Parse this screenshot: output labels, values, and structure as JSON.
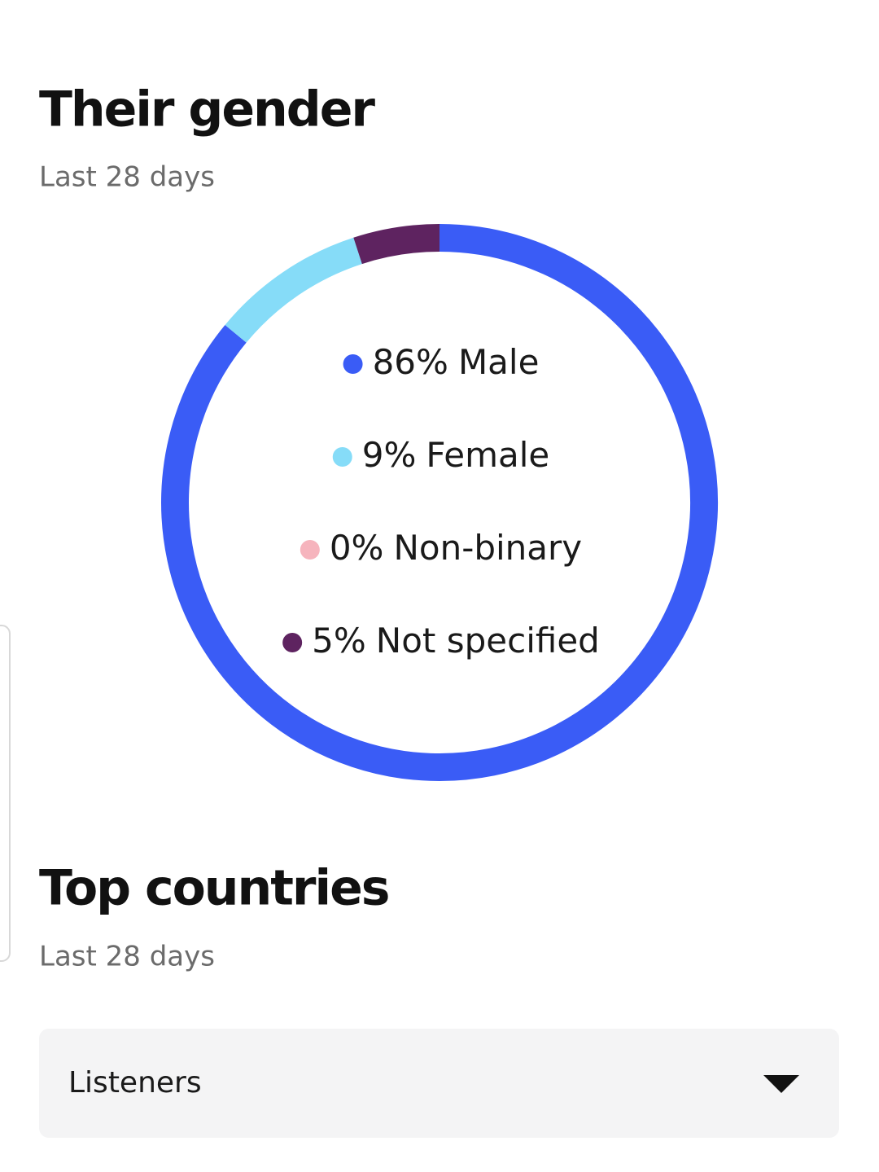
{
  "chart_data": {
    "type": "donut",
    "title": "Their gender",
    "subtitle": "Last 28 days",
    "categories": [
      "Male",
      "Female",
      "Non-binary",
      "Not specified"
    ],
    "values": [
      86,
      9,
      0,
      5
    ],
    "value_labels": [
      "86%",
      "9%",
      "0%",
      "5%"
    ],
    "colors": [
      "#3a5cf6",
      "#86dcf8",
      "#f6b4bd",
      "#5e2360"
    ]
  },
  "countries": {
    "title": "Top countries",
    "subtitle": "Last 28 days",
    "dropdown": "Listeners"
  }
}
